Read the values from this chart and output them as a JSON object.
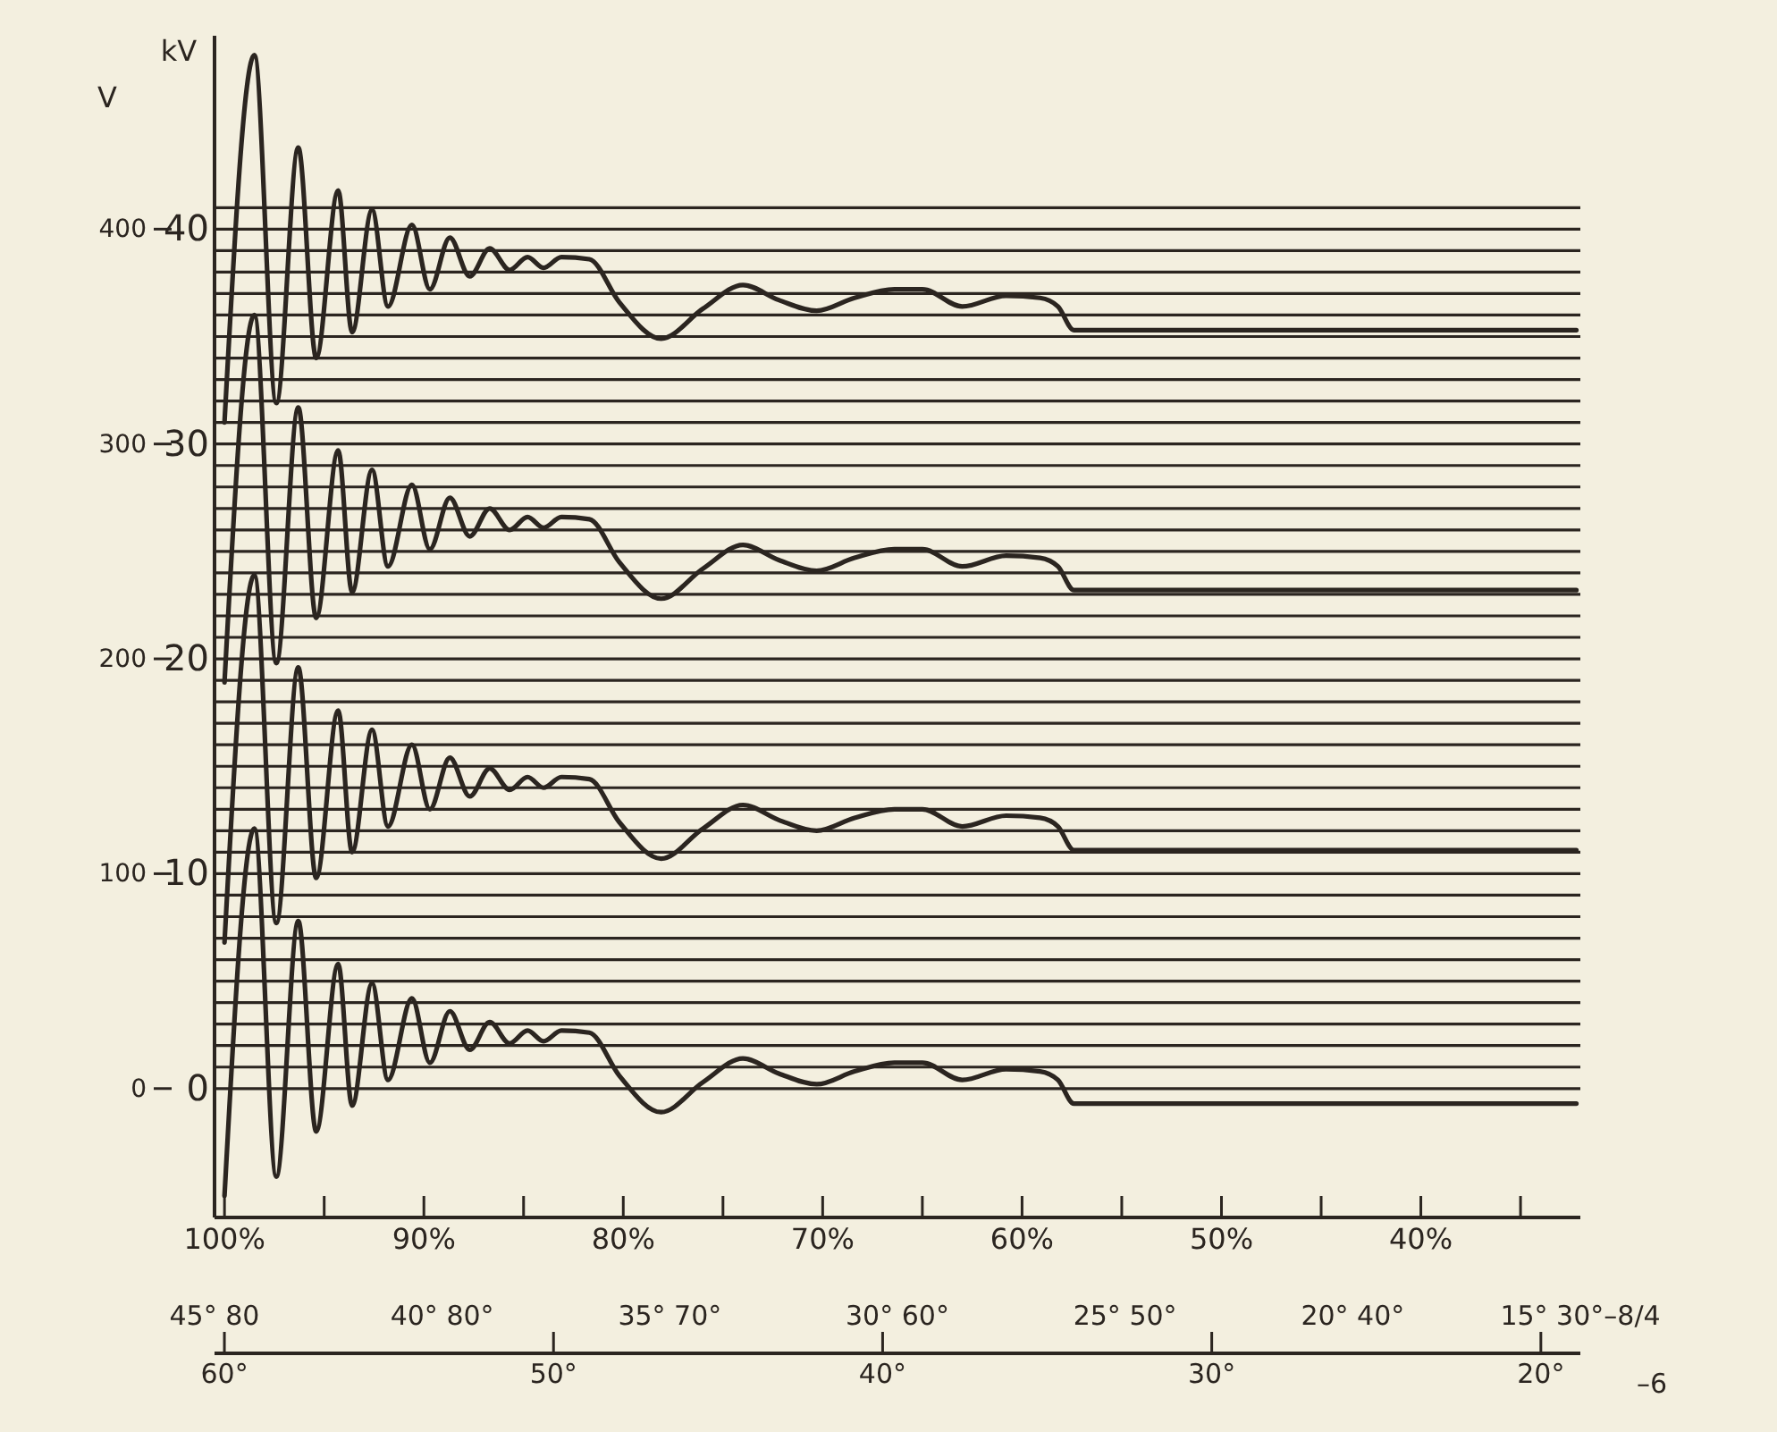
{
  "chart_data": {
    "type": "line",
    "ylabel": "kV",
    "y2label": "V",
    "grid": "y",
    "xlim": [
      100.5,
      32
    ],
    "ylim": [
      -6,
      49
    ],
    "y2lim": [
      -60,
      490
    ],
    "xticks": [
      {
        "value": 100,
        "label": "100%"
      },
      {
        "value": 95,
        "label": null
      },
      {
        "value": 90,
        "label": "90%"
      },
      {
        "value": 85,
        "label": null
      },
      {
        "value": 80,
        "label": "80%"
      },
      {
        "value": 75,
        "label": null
      },
      {
        "value": 70,
        "label": "70%"
      },
      {
        "value": 65,
        "label": null
      },
      {
        "value": 60,
        "label": "60%"
      },
      {
        "value": 55,
        "label": null
      },
      {
        "value": 50,
        "label": "50%"
      },
      {
        "value": 45,
        "label": null
      },
      {
        "value": 40,
        "label": "40%"
      },
      {
        "value": 35,
        "label": null
      }
    ],
    "annotations": [
      "45° 80",
      "40° 80°",
      "35° 70°",
      "30° 60°",
      "25° 50°",
      "20° 40°",
      "15° 30°–8/4",
      "–6"
    ],
    "x2lim": [
      60.3,
      18.8
    ],
    "x2ticks": [
      {
        "value": 60,
        "label": "60°"
      },
      {
        "value": 50,
        "label": "50°"
      },
      {
        "value": 40,
        "label": "40°"
      },
      {
        "value": 30,
        "label": "30°"
      },
      {
        "value": 20,
        "label": "20°"
      }
    ],
    "yticks": [
      0,
      {
        "value": 1,
        "label": null
      },
      {
        "value": 2,
        "label": null
      },
      {
        "value": 3,
        "label": null
      },
      {
        "value": 4,
        "label": null
      },
      {
        "value": 5,
        "label": null
      },
      {
        "value": 6,
        "label": null
      },
      {
        "value": 7,
        "label": null
      },
      {
        "value": 8,
        "label": null
      },
      {
        "value": 9,
        "label": null
      },
      10,
      {
        "value": 11,
        "label": null
      },
      {
        "value": 12,
        "label": null
      },
      {
        "value": 13,
        "label": null
      },
      {
        "value": 14,
        "label": null
      },
      {
        "value": 15,
        "label": null
      },
      {
        "value": 16,
        "label": null
      },
      {
        "value": 17,
        "label": null
      },
      {
        "value": 18,
        "label": null
      },
      {
        "value": 19,
        "label": null
      },
      20,
      {
        "value": 21,
        "label": null
      },
      {
        "value": 22,
        "label": null
      },
      {
        "value": 23,
        "label": null
      },
      {
        "value": 24,
        "label": null
      },
      {
        "value": 25,
        "label": null
      },
      {
        "value": 26,
        "label": null
      },
      {
        "value": 27,
        "label": null
      },
      {
        "value": 28,
        "label": null
      },
      {
        "value": 29,
        "label": null
      },
      30,
      {
        "value": 31,
        "label": null
      },
      {
        "value": 32,
        "label": null
      },
      {
        "value": 33,
        "label": null
      },
      {
        "value": 34,
        "label": null
      },
      {
        "value": 35,
        "label": null
      },
      {
        "value": 36,
        "label": null
      },
      {
        "value": 37,
        "label": null
      },
      {
        "value": 38,
        "label": null
      },
      {
        "value": 39,
        "label": null
      },
      40,
      {
        "value": 41,
        "label": null
      }
    ],
    "y2ticks": [
      0,
      100,
      200,
      300,
      400
    ],
    "x": [
      100,
      98.5,
      97.4,
      96.3,
      95.4,
      94.3,
      93.6,
      92.6,
      91.8,
      90.6,
      89.7,
      88.7,
      87.7,
      86.7,
      85.7,
      84.8,
      84.0,
      83.1,
      81.7,
      80.2,
      78.1,
      76.0,
      74.0,
      72.2,
      70.3,
      68.4,
      66.4,
      65.0,
      63.0,
      60.8,
      59.1,
      58.2,
      57.4,
      32.2
    ],
    "series": [
      {
        "color": "#2b2520",
        "values": [
          31.0,
          48.1,
          31.9,
          43.8,
          34.0,
          41.8,
          35.2,
          40.9,
          36.4,
          40.2,
          37.2,
          39.6,
          37.8,
          39.1,
          38.1,
          38.7,
          38.2,
          38.7,
          38.6,
          36.6,
          34.9,
          36.3,
          37.4,
          36.7,
          36.2,
          36.8,
          37.2,
          37.2,
          36.4,
          36.9,
          36.8,
          36.4,
          35.3,
          35.3
        ]
      },
      {
        "color": "#2b2520",
        "values": [
          18.9,
          36.0,
          19.8,
          31.7,
          21.9,
          29.7,
          23.1,
          28.8,
          24.3,
          28.1,
          25.1,
          27.5,
          25.7,
          27.0,
          26.0,
          26.6,
          26.1,
          26.6,
          26.5,
          24.5,
          22.8,
          24.2,
          25.3,
          24.6,
          24.1,
          24.7,
          25.1,
          25.1,
          24.3,
          24.8,
          24.7,
          24.3,
          23.2,
          23.2
        ]
      },
      {
        "color": "#2b2520",
        "values": [
          6.8,
          23.9,
          7.7,
          19.6,
          9.8,
          17.6,
          11.0,
          16.7,
          12.2,
          16.0,
          13.0,
          15.4,
          13.6,
          14.9,
          13.9,
          14.5,
          14.0,
          14.5,
          14.4,
          12.4,
          10.7,
          12.1,
          13.2,
          12.5,
          12.0,
          12.6,
          13.0,
          13.0,
          12.2,
          12.7,
          12.6,
          12.2,
          11.1,
          11.1
        ]
      },
      {
        "color": "#2b2520",
        "values": [
          -5.0,
          12.1,
          -4.1,
          7.8,
          -2.0,
          5.8,
          -0.8,
          4.9,
          0.4,
          4.2,
          1.2,
          3.6,
          1.8,
          3.1,
          2.1,
          2.7,
          2.2,
          2.7,
          2.6,
          0.6,
          -1.1,
          0.3,
          1.4,
          0.7,
          0.2,
          0.8,
          1.2,
          1.2,
          0.4,
          0.9,
          0.8,
          0.4,
          -0.7,
          -0.7
        ]
      }
    ]
  }
}
